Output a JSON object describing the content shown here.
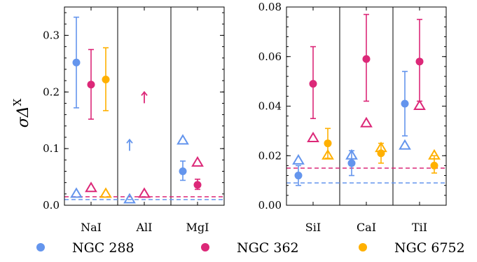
{
  "chart_data": [
    {
      "type": "scatter",
      "ylabel": "σΔ",
      "ylabel_sup": "X",
      "ylim": [
        0,
        0.35
      ],
      "yticks": [
        "0.0",
        "0.1",
        "0.2",
        "0.3"
      ],
      "categories": [
        "NaI",
        "AlI",
        "MgI"
      ],
      "series": [
        {
          "name": "NGC 288",
          "color": "#6495ed",
          "points": [
            {
              "cat": 0,
              "y": 0.252,
              "err": [
                0.172,
                0.332
              ]
            },
            {
              "cat": 2,
              "y": 0.06,
              "err": [
                0.044,
                0.078
              ]
            }
          ],
          "upper_limits": [
            {
              "cat": 1,
              "y": 0.106
            }
          ],
          "triangles": [
            {
              "cat": 0,
              "y": 0.02
            },
            {
              "cat": 1,
              "y": 0.01
            },
            {
              "cat": 2,
              "y": 0.114
            }
          ],
          "hline": 0.01
        },
        {
          "name": "NGC 362",
          "color": "#dc2878",
          "points": [
            {
              "cat": 0,
              "y": 0.213,
              "err": [
                0.152,
                0.275
              ]
            },
            {
              "cat": 2,
              "y": 0.036,
              "err": [
                0.028,
                0.046
              ]
            }
          ],
          "upper_limits": [
            {
              "cat": 1,
              "y": 0.19
            }
          ],
          "triangles": [
            {
              "cat": 0,
              "y": 0.03
            },
            {
              "cat": 1,
              "y": 0.02
            },
            {
              "cat": 2,
              "y": 0.075
            }
          ],
          "hline": 0.015
        },
        {
          "name": "NGC 6752",
          "color": "#ffb000",
          "points": [
            {
              "cat": 0,
              "y": 0.222,
              "err": [
                0.167,
                0.278
              ]
            }
          ],
          "upper_limits": [],
          "triangles": [
            {
              "cat": 0,
              "y": 0.02
            }
          ],
          "hline": null
        }
      ]
    },
    {
      "type": "scatter",
      "ylim": [
        0,
        0.08
      ],
      "yticks": [
        "0.00",
        "0.02",
        "0.04",
        "0.06",
        "0.08"
      ],
      "categories": [
        "SiI",
        "CaI",
        "TiI"
      ],
      "series": [
        {
          "name": "NGC 288",
          "color": "#6495ed",
          "points": [
            {
              "cat": 0,
              "y": 0.012,
              "err": [
                0.008,
                0.016
              ]
            },
            {
              "cat": 1,
              "y": 0.017,
              "err": [
                0.012,
                0.022
              ]
            },
            {
              "cat": 2,
              "y": 0.041,
              "err": [
                0.028,
                0.054
              ]
            }
          ],
          "triangles": [
            {
              "cat": 0,
              "y": 0.018
            },
            {
              "cat": 1,
              "y": 0.02
            },
            {
              "cat": 2,
              "y": 0.024
            }
          ],
          "hline": 0.009
        },
        {
          "name": "NGC 362",
          "color": "#dc2878",
          "points": [
            {
              "cat": 0,
              "y": 0.049,
              "err": [
                0.035,
                0.064
              ]
            },
            {
              "cat": 1,
              "y": 0.059,
              "err": [
                0.042,
                0.077
              ]
            },
            {
              "cat": 2,
              "y": 0.058,
              "err": [
                0.042,
                0.075
              ]
            }
          ],
          "triangles": [
            {
              "cat": 0,
              "y": 0.027
            },
            {
              "cat": 1,
              "y": 0.033
            },
            {
              "cat": 2,
              "y": 0.04
            }
          ],
          "hline": 0.015
        },
        {
          "name": "NGC 6752",
          "color": "#ffb000",
          "points": [
            {
              "cat": 0,
              "y": 0.025,
              "err": [
                0.019,
                0.031
              ]
            },
            {
              "cat": 1,
              "y": 0.021,
              "err": [
                0.017,
                0.025
              ]
            },
            {
              "cat": 2,
              "y": 0.016,
              "err": [
                0.013,
                0.02
              ]
            }
          ],
          "triangles": [
            {
              "cat": 0,
              "y": 0.02
            },
            {
              "cat": 1,
              "y": 0.023
            },
            {
              "cat": 2,
              "y": 0.02
            }
          ],
          "hline": null
        }
      ]
    }
  ],
  "legend": [
    {
      "label": "NGC 288",
      "color": "#6495ed"
    },
    {
      "label": "NGC 362",
      "color": "#dc2878"
    },
    {
      "label": "NGC 6752",
      "color": "#ffb000"
    }
  ]
}
